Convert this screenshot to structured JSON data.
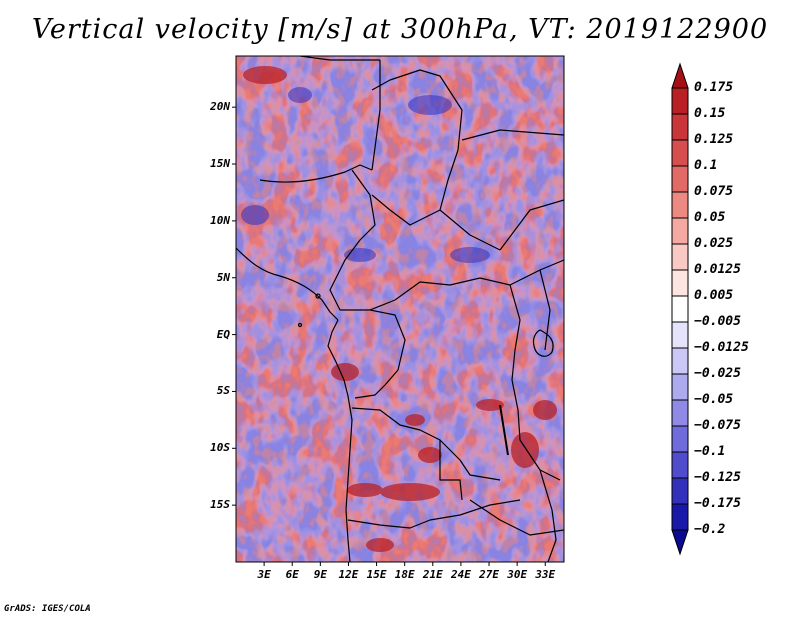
{
  "title": "Vertical velocity [m/s] at 300hPa, VT: 2019122900",
  "map": {
    "lat_labels": [
      "20N",
      "15N",
      "10N",
      "5N",
      "EQ",
      "5S",
      "10S",
      "15S"
    ],
    "lat_values": [
      20,
      15,
      10,
      5,
      0,
      -5,
      -10,
      -15
    ],
    "lat_range": [
      -20,
      24.5
    ],
    "lon_labels": [
      "3E",
      "6E",
      "9E",
      "12E",
      "15E",
      "18E",
      "21E",
      "24E",
      "27E",
      "30E",
      "33E"
    ],
    "lon_values": [
      3,
      6,
      9,
      12,
      15,
      18,
      21,
      24,
      27,
      30,
      33
    ],
    "lon_range": [
      0,
      35
    ],
    "field": "vertical velocity",
    "level": "300hPa",
    "units": "m/s"
  },
  "colorbar": {
    "labels": [
      "0.175",
      "0.15",
      "0.125",
      "0.1",
      "0.075",
      "0.05",
      "0.025",
      "0.0125",
      "0.005",
      "−0.005",
      "−0.0125",
      "−0.025",
      "−0.05",
      "−0.075",
      "−0.1",
      "−0.125",
      "−0.175",
      "−0.2"
    ],
    "colors": [
      "#a50f15",
      "#b82025",
      "#c93539",
      "#d74e4e",
      "#e26a66",
      "#ec8a82",
      "#f4aaa2",
      "#f9cac3",
      "#fde6e2",
      "#ffffff",
      "#e6e4fa",
      "#cbc8f5",
      "#aeaaee",
      "#908ae6",
      "#706bdb",
      "#514ccd",
      "#3330bc",
      "#1a18a8",
      "#0b0a90"
    ],
    "extend": "both"
  },
  "credit": "GrADS: IGES/COLA"
}
